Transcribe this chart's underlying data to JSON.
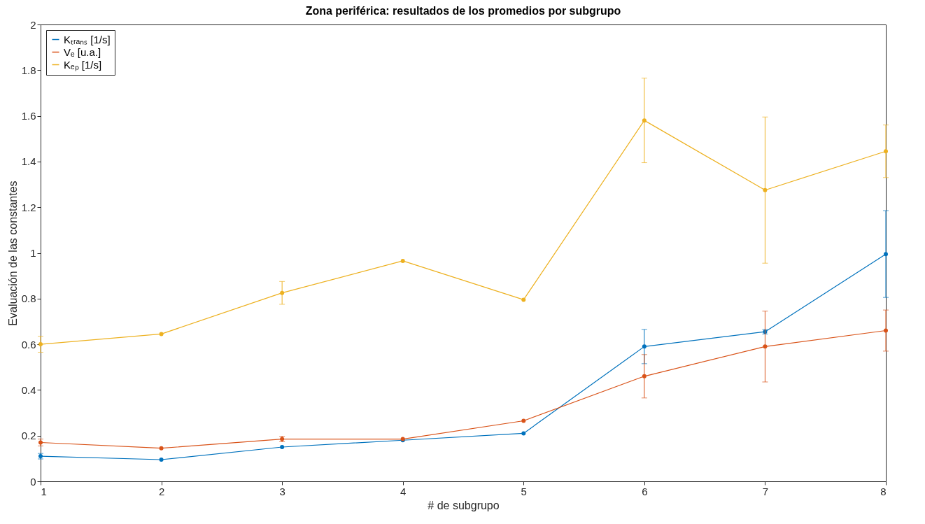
{
  "chart_data": {
    "type": "line",
    "title": "Zona periférica: resultados de los promedios por subgrupo",
    "xlabel": "# de subgrupo",
    "ylabel": "Evaluación de las constantes",
    "x": [
      1,
      2,
      3,
      4,
      5,
      6,
      7,
      8
    ],
    "series": [
      {
        "name": "Kₜᵣₐₙₛ [1/s]",
        "color": "#0072bd",
        "values": [
          0.11,
          0.095,
          0.15,
          0.18,
          0.21,
          0.59,
          0.655,
          0.995
        ],
        "errors": [
          0.012,
          null,
          null,
          null,
          null,
          0.075,
          0.01,
          0.19
        ]
      },
      {
        "name": "Vₑ [u.a.]",
        "color": "#d95319",
        "values": [
          0.17,
          0.145,
          0.185,
          0.185,
          0.265,
          0.46,
          0.59,
          0.66
        ],
        "errors": [
          0.015,
          null,
          0.012,
          null,
          null,
          0.095,
          0.155,
          0.09
        ]
      },
      {
        "name": "Kₑₚ [1/s]",
        "color": "#edb120",
        "values": [
          0.6,
          0.645,
          0.825,
          0.965,
          0.795,
          1.58,
          1.275,
          1.445
        ],
        "errors": [
          0.035,
          null,
          0.05,
          null,
          null,
          0.185,
          0.32,
          0.115
        ]
      }
    ],
    "xlim": [
      1,
      8
    ],
    "xticks": [
      1,
      2,
      3,
      4,
      5,
      6,
      7,
      8
    ],
    "ylim": [
      0,
      2
    ],
    "yticks": [
      0,
      0.2,
      0.4,
      0.6,
      0.8,
      1,
      1.2,
      1.4,
      1.6,
      1.8,
      2
    ],
    "grid": false,
    "legend": "top left",
    "marker": "circle",
    "line_style": "solid"
  }
}
